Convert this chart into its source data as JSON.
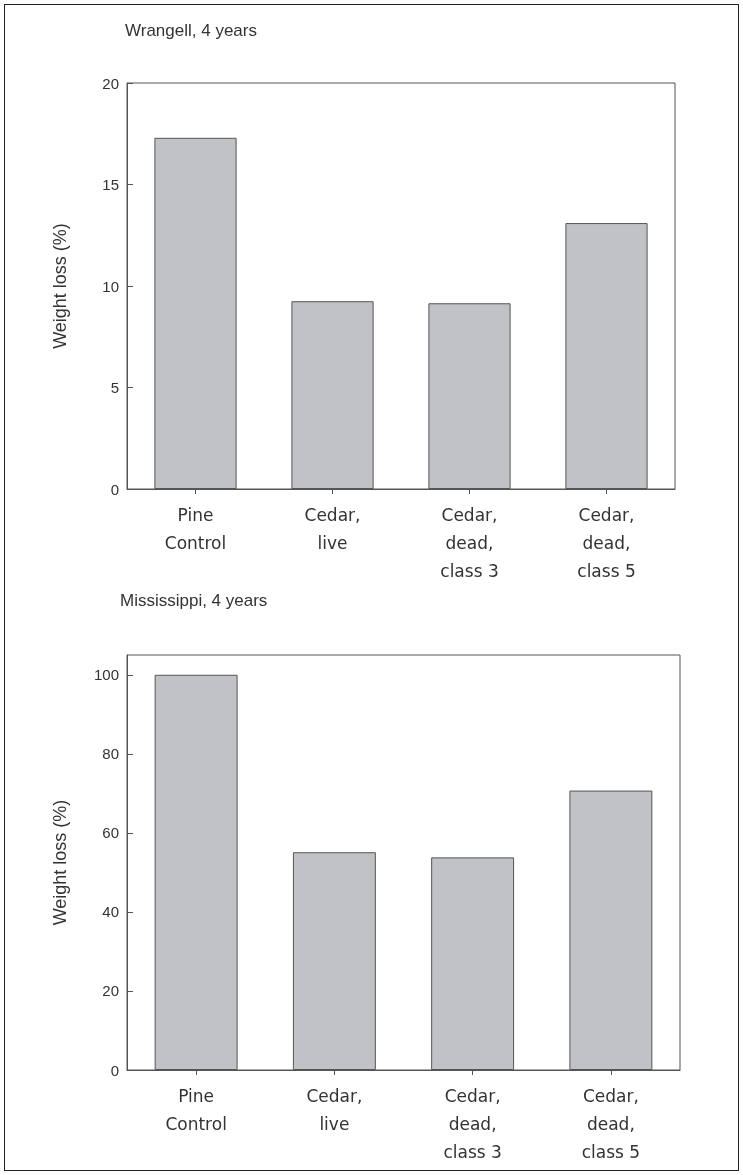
{
  "chart_data": [
    {
      "type": "bar",
      "title": "Wrangell, 4 years",
      "ylabel": "Weight loss (%)",
      "categories": [
        "Pine\nControl",
        "Cedar,\nlive",
        "Cedar,\ndead,\nclass 3",
        "Cedar,\ndead,\nclass 5"
      ],
      "values": [
        17.3,
        9.25,
        9.15,
        13.1
      ],
      "color": "#c1c2c5",
      "ylim": [
        0,
        20
      ],
      "yticks": [
        0,
        5,
        10,
        15,
        20
      ],
      "grid": false
    },
    {
      "type": "bar",
      "title": "Mississippi, 4 years",
      "ylabel": "Weight loss (%)",
      "categories": [
        "Pine\nControl",
        "Cedar,\nlive",
        "Cedar,\ndead,\nclass 3",
        "Cedar,\ndead,\nclass 5"
      ],
      "values": [
        100,
        55.1,
        53.8,
        70.7
      ],
      "color": "#c1c2c5",
      "ylim": [
        0,
        105
      ],
      "yticks": [
        0,
        20,
        40,
        60,
        80,
        100
      ],
      "grid": false
    }
  ]
}
